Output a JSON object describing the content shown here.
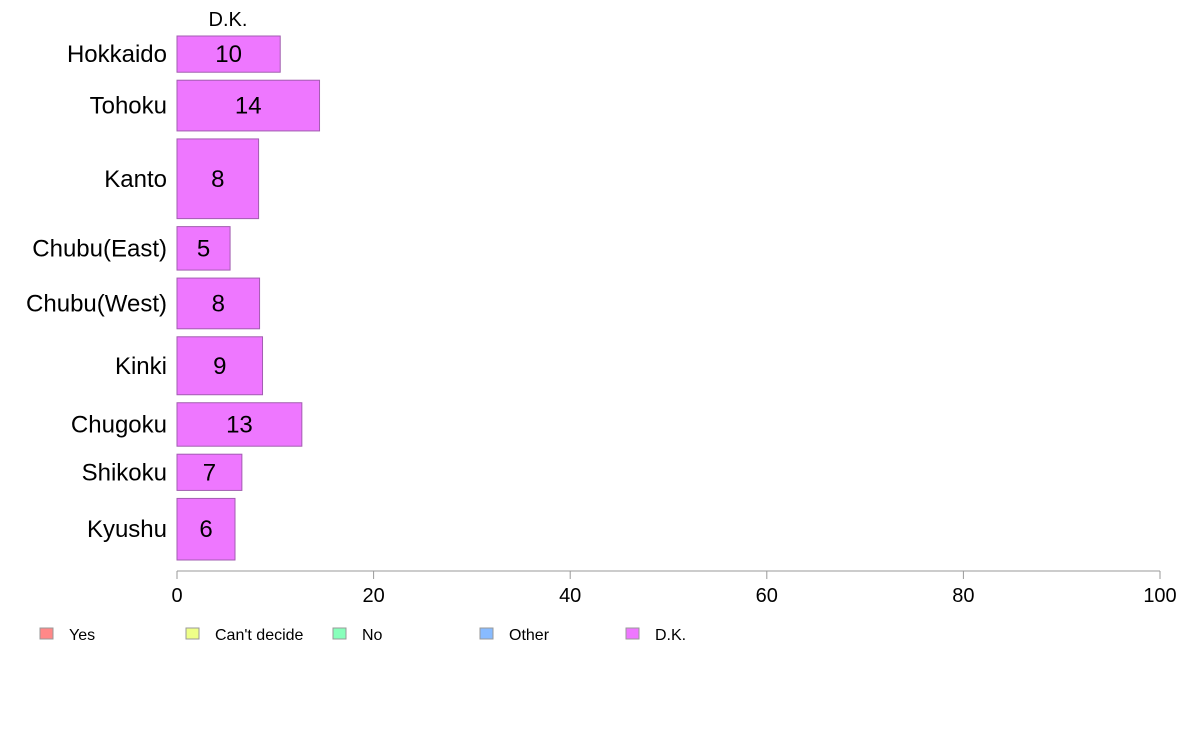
{
  "chart_data": {
    "type": "bar",
    "orientation": "horizontal",
    "panel_title": "D.K.",
    "categories": [
      "Hokkaido",
      "Tohoku",
      "Kanto",
      "Chubu(East)",
      "Chubu(West)",
      "Kinki",
      "Chugoku",
      "Shikoku",
      "Kyushu"
    ],
    "relative_bar_heights": [
      1,
      1.4,
      2.2,
      1.2,
      1.4,
      1.6,
      1.2,
      1.0,
      1.7
    ],
    "series": [
      {
        "name": "D.K.",
        "color": "#ee77ff",
        "values": [
          10.5,
          14.5,
          8.3,
          5.4,
          8.4,
          8.7,
          12.7,
          6.6,
          5.9
        ],
        "labels": [
          "10",
          "14",
          "8",
          "5",
          "8",
          "9",
          "13",
          "7",
          "6"
        ]
      }
    ],
    "xlim": [
      0,
      100
    ],
    "xticks": [
      0,
      20,
      40,
      60,
      80,
      100
    ],
    "grid": false,
    "legend": {
      "placement": "bottom-left",
      "items": [
        {
          "label": "Yes",
          "color": "#ff8888"
        },
        {
          "label": "Can't decide",
          "color": "#eeff88"
        },
        {
          "label": "No",
          "color": "#88ffbb"
        },
        {
          "label": "Other",
          "color": "#88bbff"
        },
        {
          "label": "D.K.",
          "color": "#ee77ff"
        }
      ]
    }
  }
}
